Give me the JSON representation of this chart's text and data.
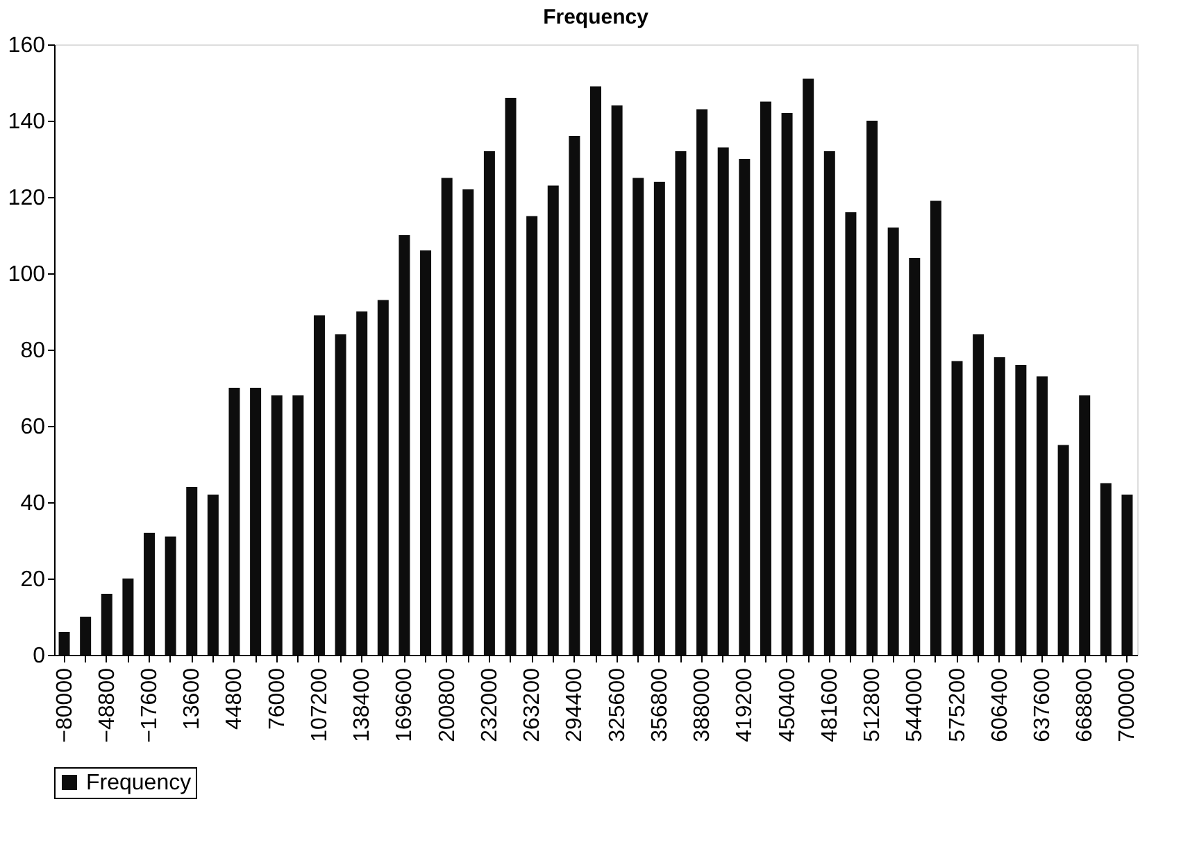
{
  "chart_data": {
    "type": "bar",
    "title": "Frequency",
    "categories": [
      "−80000",
      null,
      "−48800",
      null,
      "−17600",
      null,
      "13600",
      null,
      "44800",
      null,
      "76000",
      null,
      "107200",
      null,
      "138400",
      null,
      "169600",
      null,
      "200800",
      null,
      "232000",
      null,
      "263200",
      null,
      "294400",
      null,
      "325600",
      null,
      "356800",
      null,
      "388000",
      null,
      "419200",
      null,
      "450400",
      null,
      "481600",
      null,
      "512800",
      null,
      "544000",
      null,
      "575200",
      null,
      "606400",
      null,
      "637600",
      null,
      "668800",
      null,
      "700000"
    ],
    "series": [
      {
        "name": "Frequency",
        "color": "#0d0d0d",
        "values": [
          6,
          10,
          16,
          20,
          32,
          31,
          44,
          42,
          70,
          70,
          68,
          68,
          89,
          84,
          90,
          93,
          110,
          106,
          125,
          122,
          132,
          146,
          115,
          123,
          136,
          149,
          144,
          125,
          124,
          132,
          143,
          133,
          130,
          145,
          142,
          151,
          132,
          116,
          140,
          112,
          104,
          119,
          77,
          84,
          78,
          76,
          73,
          55,
          68,
          45,
          42
        ]
      }
    ],
    "ylim": [
      0,
      160
    ],
    "yticks": [
      0,
      20,
      40,
      60,
      80,
      100,
      120,
      140,
      160
    ],
    "grid": false,
    "legend": "bottom"
  }
}
